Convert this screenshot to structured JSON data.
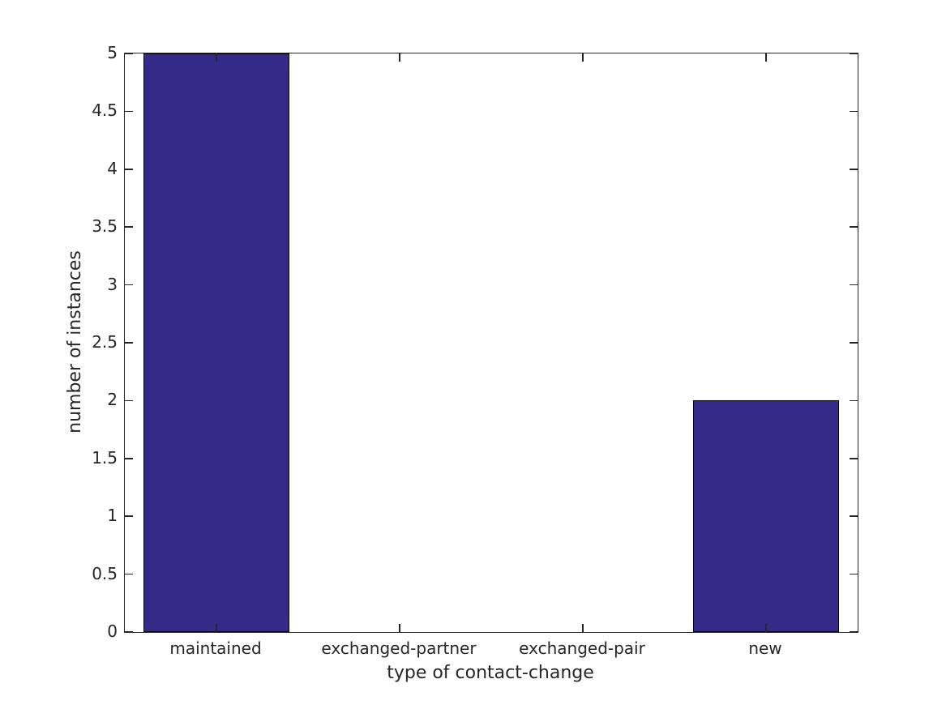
{
  "chart_data": {
    "type": "bar",
    "categories": [
      "maintained",
      "exchanged-partner",
      "exchanged-pair",
      "new"
    ],
    "values": [
      5,
      0,
      0,
      2
    ],
    "title": "",
    "xlabel": "type of contact-change",
    "ylabel": "number of instances",
    "ylim": [
      0,
      5
    ],
    "ytick_step": 0.5,
    "yticks": [
      0,
      0.5,
      1,
      1.5,
      2,
      2.5,
      3,
      3.5,
      4,
      4.5,
      5
    ],
    "bar_width_fraction": 0.8,
    "bar_color": "#352a87",
    "bar_edge_color": "#000000",
    "axis_color": "#262626",
    "text_color": "#262626",
    "background_color": "#ffffff",
    "grid": false,
    "legend": null,
    "box": true,
    "tick_direction": "in"
  }
}
